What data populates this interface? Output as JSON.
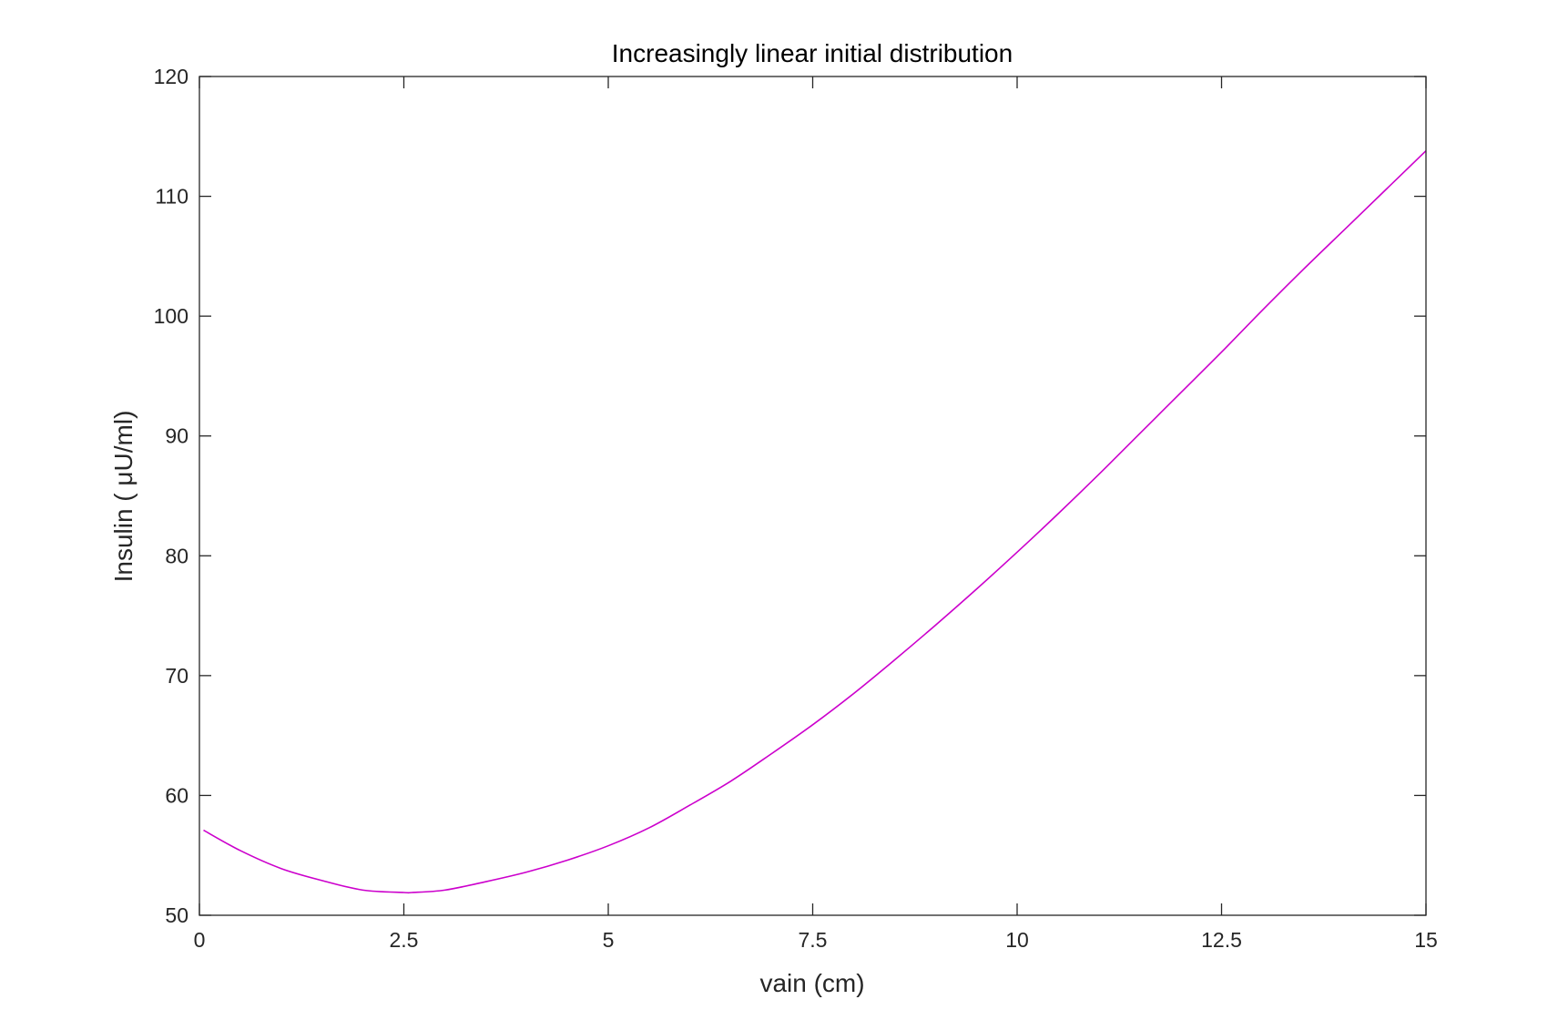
{
  "chart_data": {
    "type": "line",
    "title": "Increasingly linear initial distribution",
    "xlabel": "vain (cm)",
    "ylabel": "Insulin ( μU/ml)",
    "xlim": [
      0,
      15
    ],
    "ylim": [
      50,
      120
    ],
    "x_ticks": [
      "0",
      "2.5",
      "5",
      "7.5",
      "10",
      "12.5",
      "15"
    ],
    "y_ticks": [
      "50",
      "60",
      "70",
      "80",
      "90",
      "100",
      "110",
      "120"
    ],
    "grid": false,
    "line_color": "#cc00cc",
    "series": [
      {
        "x": [
          0.05,
          0.5,
          1.0,
          1.5,
          2.0,
          2.5,
          2.6,
          3.0,
          3.5,
          4.0,
          4.5,
          5.0,
          5.5,
          6.0,
          6.5,
          7.0,
          7.5,
          8.0,
          8.5,
          9.0,
          9.5,
          10.0,
          10.5,
          11.0,
          11.5,
          12.0,
          12.5,
          13.0,
          13.5,
          14.0,
          14.5,
          15.0
        ],
        "y": [
          57.1,
          55.4,
          53.9,
          52.9,
          52.1,
          51.9,
          51.9,
          52.1,
          52.8,
          53.6,
          54.6,
          55.8,
          57.3,
          59.2,
          61.2,
          63.5,
          65.9,
          68.5,
          71.3,
          74.2,
          77.2,
          80.3,
          83.5,
          86.8,
          90.2,
          93.6,
          97.0,
          100.5,
          103.9,
          107.2,
          110.5,
          113.8
        ]
      }
    ]
  }
}
